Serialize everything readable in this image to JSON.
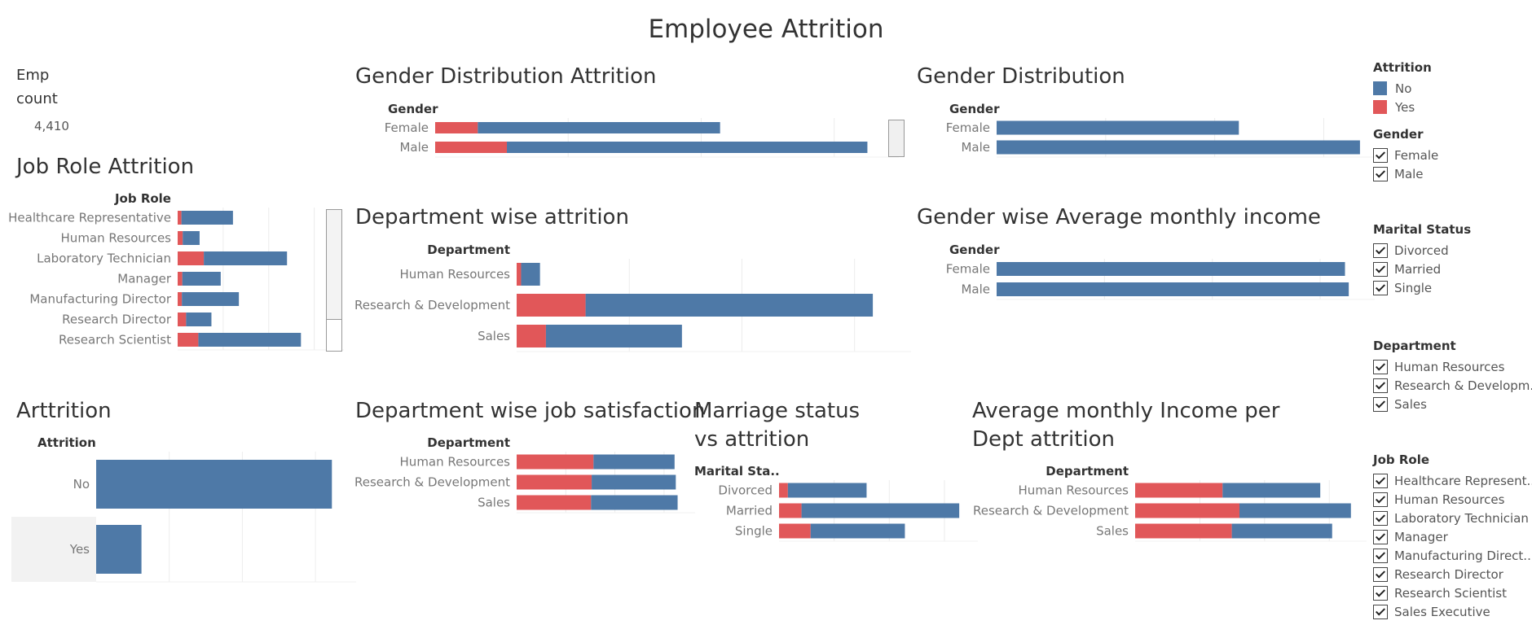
{
  "dashboard": {
    "title": "Employee Attrition"
  },
  "kpi": {
    "label_line1": "Emp",
    "label_line2": "count",
    "value": "4,410"
  },
  "colors": {
    "no": "#4e79a7",
    "yes": "#e15759"
  },
  "legends": {
    "attrition": {
      "title": "Attrition",
      "items": [
        {
          "label": "No",
          "color": "#4e79a7"
        },
        {
          "label": "Yes",
          "color": "#e15759"
        }
      ]
    },
    "gender": {
      "title": "Gender",
      "items": [
        "Female",
        "Male"
      ]
    },
    "marital": {
      "title": "Marital Status",
      "items": [
        "Divorced",
        "Married",
        "Single"
      ]
    },
    "department": {
      "title": "Department",
      "items": [
        "Human Resources",
        "Research & Developm..",
        "Sales"
      ]
    },
    "jobrole": {
      "title": "Job Role",
      "items": [
        "Healthcare Represent..",
        "Human Resources",
        "Laboratory Technician",
        "Manager",
        "Manufacturing Direct..",
        "Research Director",
        "Research Scientist",
        "Sales Executive"
      ]
    }
  },
  "chart_data": [
    {
      "id": "gender_attrition",
      "type": "bar",
      "title": "Gender Distribution Attrition",
      "header": "Gender",
      "categories": [
        "Female",
        "Male"
      ],
      "series": [
        {
          "name": "Yes",
          "values": [
            132,
            222
          ]
        },
        {
          "name": "No",
          "values": [
            750,
            1116
          ]
        }
      ],
      "xlim": [
        0,
        1400
      ]
    },
    {
      "id": "gender_dist",
      "type": "bar",
      "title": "Gender Distribution",
      "header": "Gender",
      "categories": [
        "Female",
        "Male"
      ],
      "series": [
        {
          "name": "",
          "values": [
            1764,
            2646
          ]
        }
      ],
      "xlim": [
        0,
        2700
      ]
    },
    {
      "id": "jobrole_attrition",
      "type": "bar",
      "title": "Job Role Attrition",
      "header": "Job Role",
      "categories": [
        "Healthcare Representative",
        "Human Resources",
        "Laboratory Technician",
        "Manager",
        "Manufacturing Director",
        "Research Director",
        "Research Scientist"
      ],
      "series": [
        {
          "name": "Yes",
          "values": [
            27,
            36,
            186,
            33,
            30,
            60,
            147
          ]
        },
        {
          "name": "No",
          "values": [
            366,
            120,
            591,
            273,
            405,
            180,
            729
          ]
        }
      ],
      "xlim": [
        0,
        1100
      ]
    },
    {
      "id": "dept_attrition",
      "type": "bar",
      "title": "Department wise attrition",
      "header": "Department",
      "categories": [
        "Human Resources",
        "Research & Development",
        "Sales"
      ],
      "series": [
        {
          "name": "Yes",
          "values": [
            36,
            558,
            237
          ]
        },
        {
          "name": "No",
          "values": [
            153,
            2325,
            1101
          ]
        }
      ],
      "xlim": [
        0,
        3100
      ]
    },
    {
      "id": "gender_income",
      "type": "bar",
      "title": "Gender wise Average monthly income",
      "header": "Gender",
      "categories": [
        "Female",
        "Male"
      ],
      "series": [
        {
          "name": "",
          "values": [
            64600,
            65300
          ]
        }
      ],
      "xlim": [
        0,
        68000
      ]
    },
    {
      "id": "attrition_count",
      "type": "bar",
      "title": "Arttrition",
      "header": "Attrition",
      "categories": [
        "No",
        "Yes"
      ],
      "series": [
        {
          "name": "",
          "values": [
            3699,
            711
          ]
        }
      ],
      "xlim": [
        0,
        3900
      ]
    },
    {
      "id": "dept_satisfaction",
      "type": "bar",
      "title": "Department wise job satisfaction",
      "header": "Department",
      "categories": [
        "Human Resources",
        "Research & Development",
        "Sales"
      ],
      "series": [
        {
          "name": "Yes",
          "values": [
            2.53,
            2.47,
            2.45
          ]
        },
        {
          "name": "No",
          "values": [
            2.67,
            2.77,
            2.85
          ]
        }
      ],
      "xlim": [
        0,
        5.5
      ]
    },
    {
      "id": "marital_attrition",
      "type": "bar",
      "title": "Marriage status vs attrition",
      "header": "Marital Sta..",
      "categories": [
        "Divorced",
        "Married",
        "Single"
      ],
      "series": [
        {
          "name": "Yes",
          "values": [
            99,
            252,
            354
          ]
        },
        {
          "name": "No",
          "values": [
            882,
            1767,
            1056
          ]
        }
      ],
      "xlim": [
        0,
        2100
      ]
    },
    {
      "id": "dept_income_attrition",
      "type": "bar",
      "title": "Average monthly Income per Dept attrition",
      "header": "Department",
      "categories": [
        "Human Resources",
        "Research & Development",
        "Sales"
      ],
      "series": [
        {
          "name": "Yes",
          "values": [
            59600,
            71100,
            65900
          ]
        },
        {
          "name": "No",
          "values": [
            66600,
            76000,
            68400
          ]
        }
      ],
      "xlim": [
        0,
        150000
      ]
    }
  ]
}
